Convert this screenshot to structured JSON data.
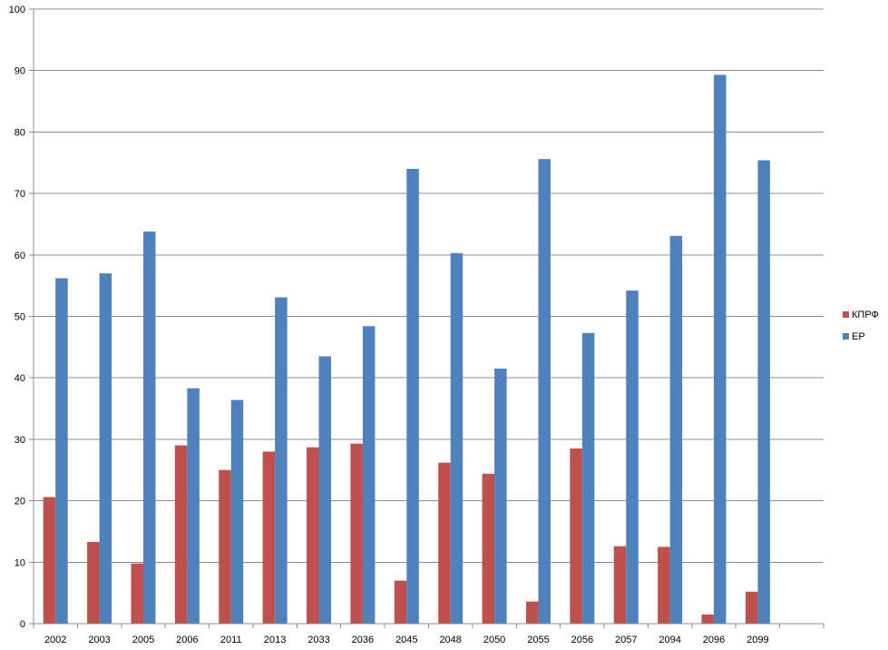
{
  "chart_data": {
    "type": "bar",
    "categories": [
      "2002",
      "2003",
      "2005",
      "2006",
      "2011",
      "2013",
      "2033",
      "2036",
      "2045",
      "2048",
      "2050",
      "2055",
      "2056",
      "2057",
      "2094",
      "2096",
      "2099"
    ],
    "series": [
      {
        "name": "КПРФ",
        "color": "#c0504d",
        "values": [
          20.6,
          13.3,
          9.8,
          29.0,
          25.0,
          28.0,
          28.7,
          29.3,
          7.0,
          26.2,
          24.4,
          3.6,
          28.5,
          12.6,
          12.5,
          1.5,
          5.2
        ]
      },
      {
        "name": "ЕР",
        "color": "#4f81bd",
        "values": [
          56.2,
          57.0,
          63.8,
          38.3,
          36.4,
          53.1,
          43.5,
          48.4,
          74.0,
          60.3,
          41.5,
          75.6,
          47.3,
          54.2,
          63.1,
          89.3,
          75.4
        ]
      }
    ],
    "ylim": [
      0,
      100
    ],
    "yticks": [
      "0",
      "10",
      "20",
      "30",
      "40",
      "50",
      "60",
      "70",
      "80",
      "90",
      "100"
    ],
    "category_slots": 18,
    "grid": true,
    "legend_position": "right",
    "title": "",
    "xlabel": "",
    "ylabel": ""
  }
}
